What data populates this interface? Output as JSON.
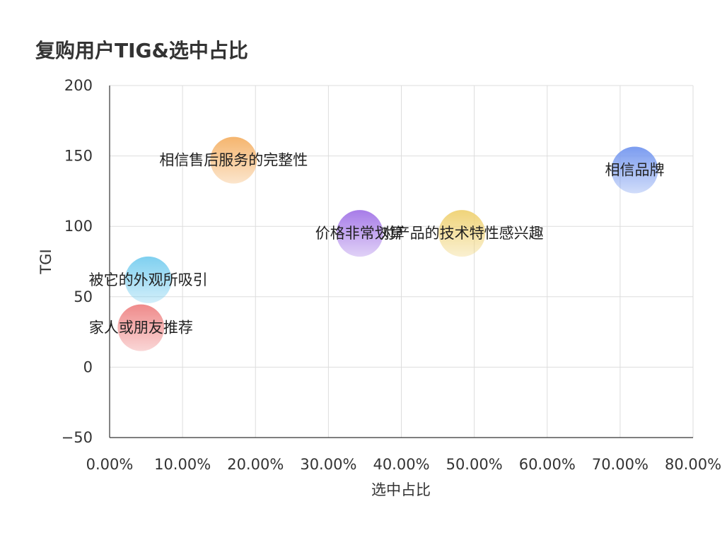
{
  "chart_data": {
    "type": "scatter",
    "title": "复购用户TIG&选中占比",
    "xlabel": "选中占比",
    "ylabel": "TGI",
    "xlim": [
      0,
      0.8
    ],
    "ylim": [
      -50,
      200
    ],
    "xticks": [
      0,
      0.1,
      0.2,
      0.3,
      0.4,
      0.5,
      0.6,
      0.7,
      0.8
    ],
    "xtick_labels": [
      "0.00%",
      "10.00%",
      "20.00%",
      "30.00%",
      "40.00%",
      "50.00%",
      "60.00%",
      "70.00%",
      "80.00%"
    ],
    "yticks": [
      200,
      150,
      100,
      50,
      0,
      -50
    ],
    "ytick_labels": [
      "200",
      "150",
      "100",
      "50",
      "0",
      "−50"
    ],
    "grid": true,
    "points": [
      {
        "label": "相信售后服务的完整性",
        "x": 0.17,
        "y": 147,
        "color": "#f5b56e"
      },
      {
        "label": "相信品牌",
        "x": 0.72,
        "y": 140,
        "color": "#7b9cf0"
      },
      {
        "label": "价格非常划算",
        "x": 0.343,
        "y": 95,
        "color": "#a77ce8"
      },
      {
        "label": "对产品的技术特性感兴趣",
        "x": 0.483,
        "y": 95,
        "color": "#f0d47a"
      },
      {
        "label": "被它的外观所吸引",
        "x": 0.053,
        "y": 62,
        "color": "#7fd0f0"
      },
      {
        "label": "家人或朋友推荐",
        "x": 0.043,
        "y": 28,
        "color": "#ef8a8a"
      }
    ]
  }
}
